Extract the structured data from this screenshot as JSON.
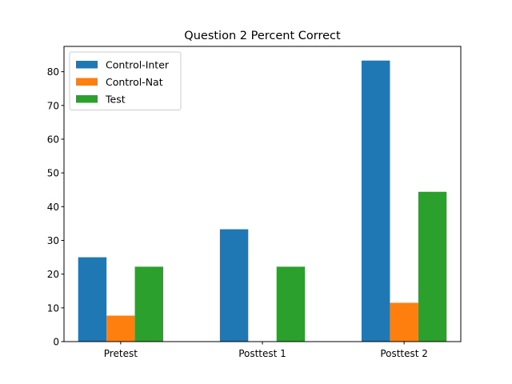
{
  "chart_data": {
    "type": "bar",
    "title": "Question 2 Percent Correct",
    "xlabel": "",
    "ylabel": "",
    "categories": [
      "Pretest",
      "Posttest 1",
      "Posttest 2"
    ],
    "series": [
      {
        "name": "Control-Inter",
        "values": [
          25.0,
          33.3,
          83.3
        ],
        "color": "#1f77b4"
      },
      {
        "name": "Control-Nat",
        "values": [
          7.7,
          0.0,
          11.5
        ],
        "color": "#ff7f0e"
      },
      {
        "name": "Test",
        "values": [
          22.2,
          22.2,
          44.4
        ],
        "color": "#2ca02c"
      }
    ],
    "ylim": [
      0,
      87.5
    ],
    "yticks": [
      0,
      10,
      20,
      30,
      40,
      50,
      60,
      70,
      80
    ],
    "grid": false,
    "legend_position": "top-left"
  }
}
